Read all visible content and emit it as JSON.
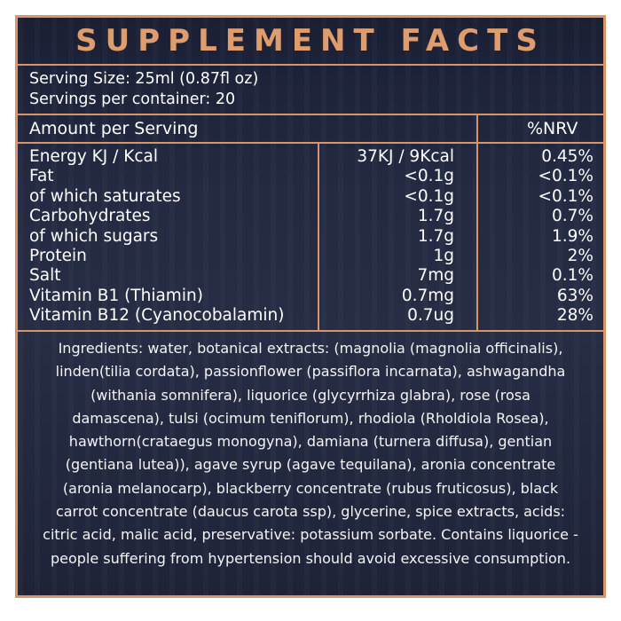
{
  "panel": {
    "title": "SUPPLEMENT FACTS",
    "serving_size": "Serving Size: 25ml (0.87fl oz)",
    "servings_per_container": "Servings per container: 20",
    "amount_header": "Amount per Serving",
    "nrv_header": "%NRV"
  },
  "nutrients": [
    {
      "name": "Energy KJ / Kcal",
      "amount": "37KJ / 9Kcal",
      "nrv": "0.45%"
    },
    {
      "name": "Fat",
      "amount": "<0.1g",
      "nrv": "<0.1%"
    },
    {
      "name": "of which saturates",
      "amount": "<0.1g",
      "nrv": "<0.1%"
    },
    {
      "name": "Carbohydrates",
      "amount": "1.7g",
      "nrv": "0.7%"
    },
    {
      "name": "of which sugars",
      "amount": "1.7g",
      "nrv": "1.9%"
    },
    {
      "name": "Protein",
      "amount": "1g",
      "nrv": "2%"
    },
    {
      "name": "Salt",
      "amount": "7mg",
      "nrv": "0.1%"
    },
    {
      "name": "Vitamin B1 (Thiamin)",
      "amount": "0.7mg",
      "nrv": "63%"
    },
    {
      "name": "Vitamin B12 (Cyanocobalamin)",
      "amount": "0.7ug",
      "nrv": "28%"
    }
  ],
  "ingredients_lines": [
    "Ingredients: water, botanical extracts: (magnolia (magnolia officinalis),",
    "linden(tilia cordata), passionflower (passiflora incarnata), ashwagandha",
    "(withania somnifera), liquorice (glycyrrhiza glabra), rose (rosa",
    "damascena), tulsi (ocimum teniflorum), rhodiola (Rholdiola Rosea),",
    "hawthorn(crataegus monogyna), damiana (turnera diffusa), gentian",
    "(gentiana lutea)),  agave syrup (agave tequilana), aronia concentrate",
    "(aronia melanocarp), blackberry concentrate (rubus fruticosus), black",
    "carrot concentrate (daucus carota ssp), glycerine, spice extracts, acids:",
    "citric acid, malic acid,  preservative: potassium sorbate. Contains liquorice -",
    "people suffering  from hypertension should avoid excessive consumption."
  ],
  "colors": {
    "accent": "#d9956a",
    "title": "#df9c6d",
    "background": "#232a42",
    "text": "#ffffff"
  }
}
